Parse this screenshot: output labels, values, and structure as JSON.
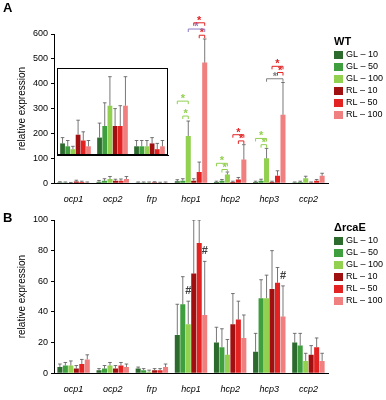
{
  "chart_data": [
    {
      "type": "bar",
      "label": "A",
      "title": "WT",
      "y_label": "relative expression",
      "categories": [
        "ocp1",
        "ocp2",
        "frp",
        "hcp1",
        "hcp2",
        "hcp3",
        "ccp2"
      ],
      "ylim": [
        0,
        600
      ],
      "yticks": [
        0,
        100,
        200,
        300,
        400,
        500,
        600
      ],
      "grid": false,
      "legend": "upper right",
      "series": [
        {
          "name": "GL – 10",
          "color": "#2d6a2d",
          "values": [
            4,
            6,
            3,
            8,
            5,
            5,
            3
          ],
          "errors": [
            2,
            5,
            2,
            6,
            3,
            3,
            2
          ]
        },
        {
          "name": "GL – 50",
          "color": "#3f9f3f",
          "values": [
            3,
            10,
            3,
            10,
            10,
            10,
            5
          ],
          "errors": [
            2,
            8,
            2,
            8,
            5,
            6,
            3
          ]
        },
        {
          "name": "GL – 100",
          "color": "#92d050",
          "values": [
            2,
            17,
            3,
            190,
            35,
            100,
            20
          ],
          "errors": [
            1,
            10,
            2,
            60,
            10,
            40,
            8
          ]
        },
        {
          "name": "RL – 10",
          "color": "#a01010",
          "values": [
            7,
            10,
            4,
            10,
            5,
            5,
            3
          ],
          "errors": [
            5,
            6,
            2,
            8,
            3,
            3,
            2
          ]
        },
        {
          "name": "RL – 50",
          "color": "#e32222",
          "values": [
            5,
            10,
            2,
            45,
            15,
            30,
            10
          ],
          "errors": [
            3,
            7,
            2,
            40,
            8,
            20,
            5
          ]
        },
        {
          "name": "RL – 100",
          "color": "#f08080",
          "values": [
            3,
            17,
            3,
            485,
            95,
            275,
            30
          ],
          "errors": [
            2,
            10,
            2,
            95,
            60,
            130,
            10
          ]
        }
      ],
      "inset": {
        "categories": [
          "ocp1",
          "ocp2",
          "frp"
        ],
        "ylim": [
          0,
          30
        ],
        "tick_labels": false
      },
      "annotations": [
        {
          "text": "*",
          "category": "hcp1",
          "series": [
            "GL – 50",
            "GL – 100"
          ],
          "y": 270,
          "color": "#92d050"
        },
        {
          "text": "*",
          "category": "hcp1",
          "series": [
            "GL – 10",
            "GL – 100"
          ],
          "y": 330,
          "color": "#92d050"
        },
        {
          "text": "*",
          "category": "hcp1",
          "series": [
            "RL – 50",
            "RL – 100"
          ],
          "y": 595,
          "color": "#e32222"
        },
        {
          "text": "*",
          "category": "hcp1",
          "series": [
            "GL – 100",
            "RL – 100"
          ],
          "y": 620,
          "color": "#8e7cc3"
        },
        {
          "text": "*",
          "category": "hcp1",
          "series": [
            "RL – 10",
            "RL – 100"
          ],
          "y": 645,
          "color": "#e32222"
        },
        {
          "text": "*",
          "category": "hcp2",
          "series": [
            "GL – 50",
            "GL – 100"
          ],
          "y": 55,
          "color": "#92d050"
        },
        {
          "text": "*",
          "category": "hcp2",
          "series": [
            "GL – 10",
            "GL – 100"
          ],
          "y": 80,
          "color": "#92d050"
        },
        {
          "text": "*",
          "category": "hcp2",
          "series": [
            "RL – 50",
            "RL – 100"
          ],
          "y": 170,
          "color": "#e32222"
        },
        {
          "text": "*",
          "category": "hcp2",
          "series": [
            "RL – 10",
            "RL – 100"
          ],
          "y": 195,
          "color": "#e32222"
        },
        {
          "text": "*",
          "category": "hcp3",
          "series": [
            "GL – 50",
            "GL – 100"
          ],
          "y": 155,
          "color": "#92d050"
        },
        {
          "text": "*",
          "category": "hcp3",
          "series": [
            "GL – 10",
            "GL – 100"
          ],
          "y": 180,
          "color": "#92d050"
        },
        {
          "text": "*",
          "category": "hcp3",
          "series": [
            "GL – 100",
            "RL – 100"
          ],
          "y": 420,
          "color": "#808080"
        },
        {
          "text": "*",
          "category": "hcp3",
          "series": [
            "RL – 50",
            "RL – 100"
          ],
          "y": 445,
          "color": "#e32222"
        },
        {
          "text": "*",
          "category": "hcp3",
          "series": [
            "RL – 10",
            "RL – 100"
          ],
          "y": 470,
          "color": "#e32222"
        }
      ]
    },
    {
      "type": "bar",
      "label": "B",
      "title": "ΔrcaE",
      "y_label": "relative expression",
      "categories": [
        "ocp1",
        "ocp2",
        "frp",
        "hcp1",
        "hcp2",
        "hcp3",
        "ccp2"
      ],
      "ylim": [
        0,
        100
      ],
      "yticks": [
        0,
        20,
        40,
        60,
        80,
        100
      ],
      "grid": false,
      "legend": "upper right",
      "series": [
        {
          "name": "GL – 10",
          "color": "#2d6a2d",
          "values": [
            4,
            2,
            3,
            25,
            20,
            14,
            20
          ],
          "errors": [
            2,
            1,
            1,
            20,
            10,
            12,
            6
          ]
        },
        {
          "name": "GL – 50",
          "color": "#3f9f3f",
          "values": [
            5,
            3,
            2,
            45,
            17,
            49,
            18
          ],
          "errors": [
            2,
            2,
            1,
            18,
            12,
            12,
            8
          ]
        },
        {
          "name": "GL – 100",
          "color": "#92d050",
          "values": [
            5,
            5,
            1,
            32,
            12,
            49,
            8
          ],
          "errors": [
            3,
            2,
            1,
            15,
            10,
            15,
            5
          ]
        },
        {
          "name": "RL – 10",
          "color": "#a01010",
          "values": [
            3,
            3,
            2,
            65,
            32,
            55,
            12
          ],
          "errors": [
            2,
            2,
            1,
            35,
            20,
            25,
            6
          ]
        },
        {
          "name": "RL – 50",
          "color": "#e32222",
          "values": [
            6,
            5,
            2,
            85,
            35,
            59,
            17
          ],
          "errors": [
            3,
            2,
            1,
            15,
            12,
            10,
            6
          ]
        },
        {
          "name": "RL – 100",
          "color": "#f08080",
          "values": [
            9,
            4,
            4,
            38,
            23,
            37,
            8
          ],
          "errors": [
            3,
            2,
            2,
            35,
            15,
            20,
            5
          ]
        }
      ],
      "annotations": [
        {
          "text": "#",
          "category": "hcp1",
          "series": [
            "GL – 100"
          ],
          "y": 50,
          "color": "#404040"
        },
        {
          "text": "#",
          "category": "hcp1",
          "series": [
            "RL – 100"
          ],
          "y": 76,
          "color": "#404040"
        },
        {
          "text": "#",
          "category": "hcp3",
          "series": [
            "RL – 100"
          ],
          "y": 60,
          "color": "#404040"
        }
      ]
    }
  ]
}
